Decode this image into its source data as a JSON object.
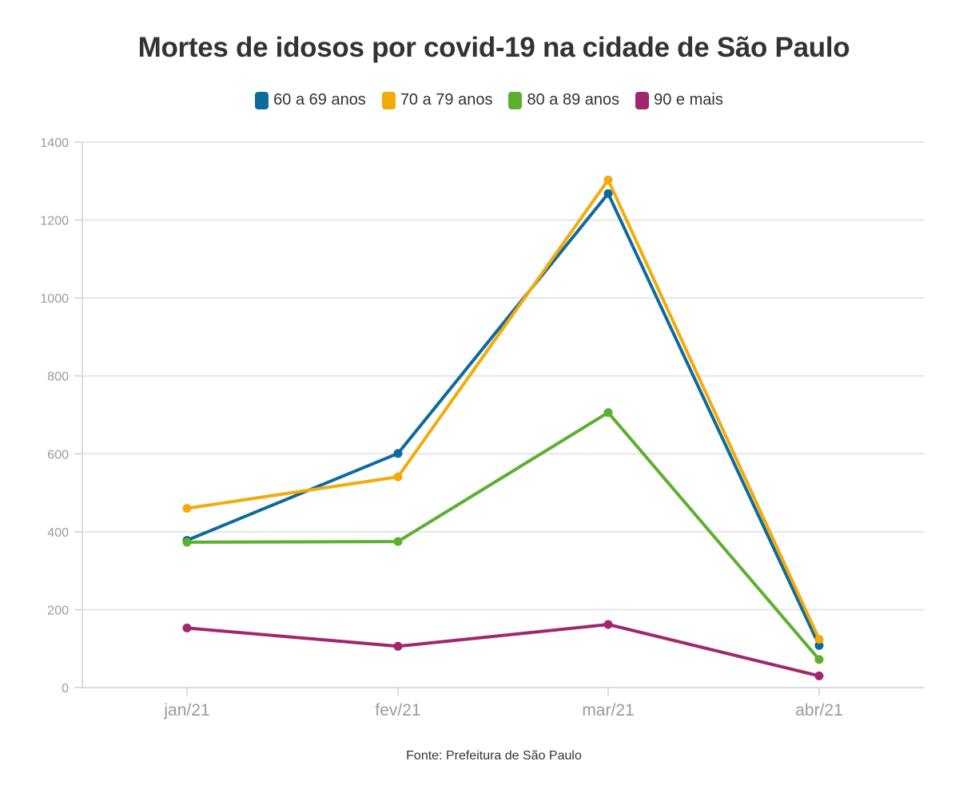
{
  "chart_data": {
    "type": "line",
    "title": "Mortes de idosos por covid-19 na cidade de São Paulo",
    "categories": [
      "jan/21",
      "fev/21",
      "mar/21",
      "abr/21"
    ],
    "ylim": [
      0,
      1400
    ],
    "yticks": [
      0,
      200,
      400,
      600,
      800,
      1000,
      1200,
      1400
    ],
    "grid": true,
    "legend_position": "top-center",
    "series": [
      {
        "name": "60 a 69 anos",
        "color": "#0f6a9c",
        "values": [
          378,
          601,
          1268,
          108
        ]
      },
      {
        "name": "70 a 79 anos",
        "color": "#f2ab0a",
        "values": [
          460,
          541,
          1303,
          124
        ]
      },
      {
        "name": "80 a 89 anos",
        "color": "#5bb030",
        "values": [
          373,
          375,
          706,
          72
        ]
      },
      {
        "name": "90 e mais",
        "color": "#a0266f",
        "values": [
          153,
          106,
          162,
          30
        ]
      }
    ],
    "source": "Fonte: Prefeitura de São Paulo"
  }
}
